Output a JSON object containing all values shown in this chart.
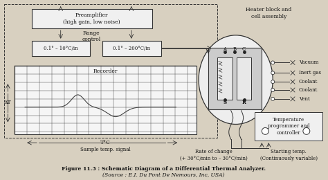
{
  "title": "Figure 11.3 : Schematic Diagram of a Differential Thermal Analyzer.",
  "source": "(Source : E.I. Du Pont De Nemours, Inc, USA)",
  "bg_color": "#d8d0c0",
  "border_color": "#333333",
  "text_color": "#111111",
  "labels": {
    "preamplifier": "Preamplifier\n(high gain, low noise)",
    "range_control": "Range\ncontrol",
    "range1": "0.1° – 10°C/in",
    "range2": "0.1° – 200°C/in",
    "recorder": "Recorder",
    "delta_t": "ΔT",
    "temp_c": "T°C",
    "sample_signal": "Sample temp. signal",
    "heater_block": "Heater block and\ncell assembly",
    "vacuum": "Vacuum",
    "inert_gas": "Inert gas",
    "coolant1": "Coolant",
    "coolant2": "Coolant",
    "vent": "Vent",
    "temp_programmer": "Temperature\nprogrammer and\ncontroller",
    "rate_of_change": "Rate of change\n(+ 30°C/min to – 30°C/min)",
    "starting_temp": "Starting temp.\n(Continuously variable)"
  }
}
